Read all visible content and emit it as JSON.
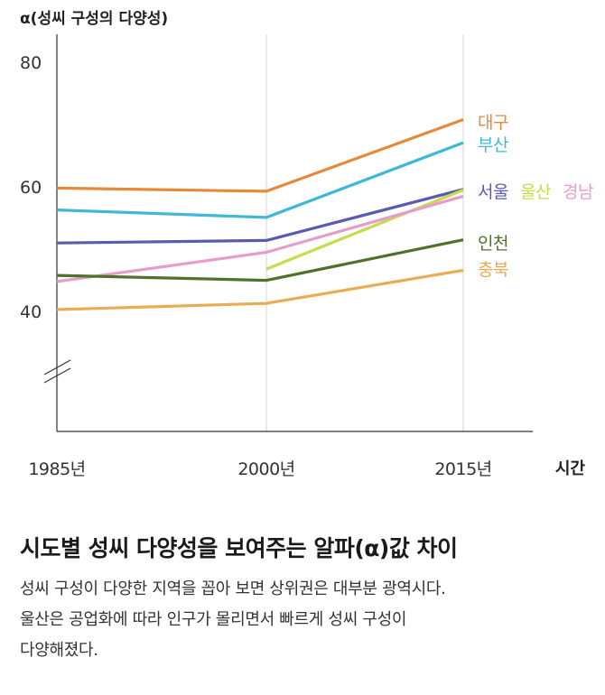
{
  "chart_data": {
    "type": "line",
    "ylabel": "α(성씨 구성의 다양성)",
    "xlabel": "시간",
    "x": [
      "1985년",
      "2000년",
      "2015년"
    ],
    "y_ticks": [
      "40",
      "60",
      "80"
    ],
    "ylim": [
      28,
      88
    ],
    "axis_break": true,
    "grid": "vertical",
    "series": [
      {
        "name": "대구",
        "color": "#E8893A",
        "values": [
          59.5,
          59.0,
          70.5
        ]
      },
      {
        "name": "부산",
        "color": "#3FB8D8",
        "values": [
          56.0,
          54.8,
          66.8
        ]
      },
      {
        "name": "서울",
        "color": "#5A5AAE",
        "values": [
          50.7,
          51.1,
          59.3
        ]
      },
      {
        "name": "울산",
        "color": "#C6DC4A",
        "values": [
          null,
          46.5,
          59.2
        ]
      },
      {
        "name": "경남",
        "color": "#E69CCC",
        "values": [
          44.5,
          49.2,
          58.2
        ]
      },
      {
        "name": "인천",
        "color": "#4E7328",
        "values": [
          45.5,
          44.7,
          51.2
        ]
      },
      {
        "name": "충북",
        "color": "#E8AD52",
        "values": [
          40.0,
          41.0,
          46.3
        ]
      }
    ]
  },
  "caption": {
    "title": "시도별 성씨 다양성을 보여주는 알파(α)값 차이",
    "lines": [
      "성씨 구성이 다양한 지역을 꼽아 보면 상위권은 대부분 광역시다.",
      "울산은 공업화에 따라 인구가 몰리면서 빠르게 성씨 구성이",
      "다양해졌다."
    ]
  }
}
